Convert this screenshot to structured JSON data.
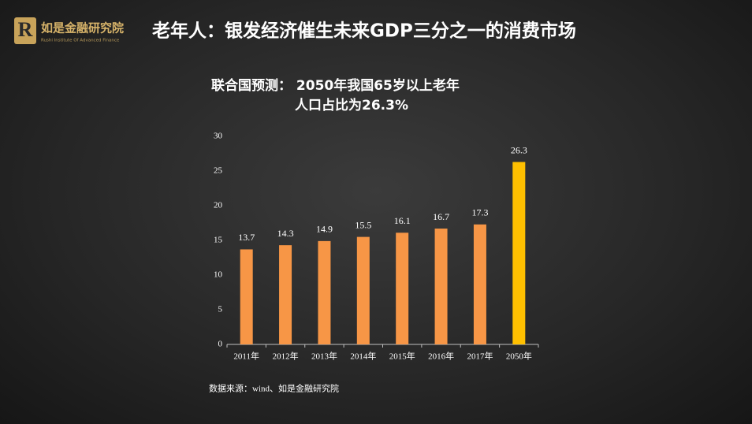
{
  "header": {
    "logo_name": "如是金融研究院",
    "logo_subtitle": "Rushi Institute Of Advanced Finance",
    "title": "老年人：银发经济催生未来GDP三分之一的消费市场"
  },
  "chart_data": {
    "type": "bar",
    "title": [
      "联合国预测：  2050年我国65岁以上老年",
      "人口占比为26.3%"
    ],
    "categories": [
      "2011年",
      "2012年",
      "2013年",
      "2014年",
      "2015年",
      "2016年",
      "2017年",
      "2050年"
    ],
    "values": [
      13.7,
      14.3,
      14.9,
      15.5,
      16.1,
      16.7,
      17.3,
      26.3
    ],
    "colors": [
      "#f79646",
      "#f79646",
      "#f79646",
      "#f79646",
      "#f79646",
      "#f79646",
      "#f79646",
      "#ffc000"
    ],
    "ylim": [
      0,
      30
    ],
    "yticks": [
      0,
      5,
      10,
      15,
      20,
      25,
      30
    ],
    "grid": false
  },
  "source": "数据来源：wind、如是金融研究院"
}
